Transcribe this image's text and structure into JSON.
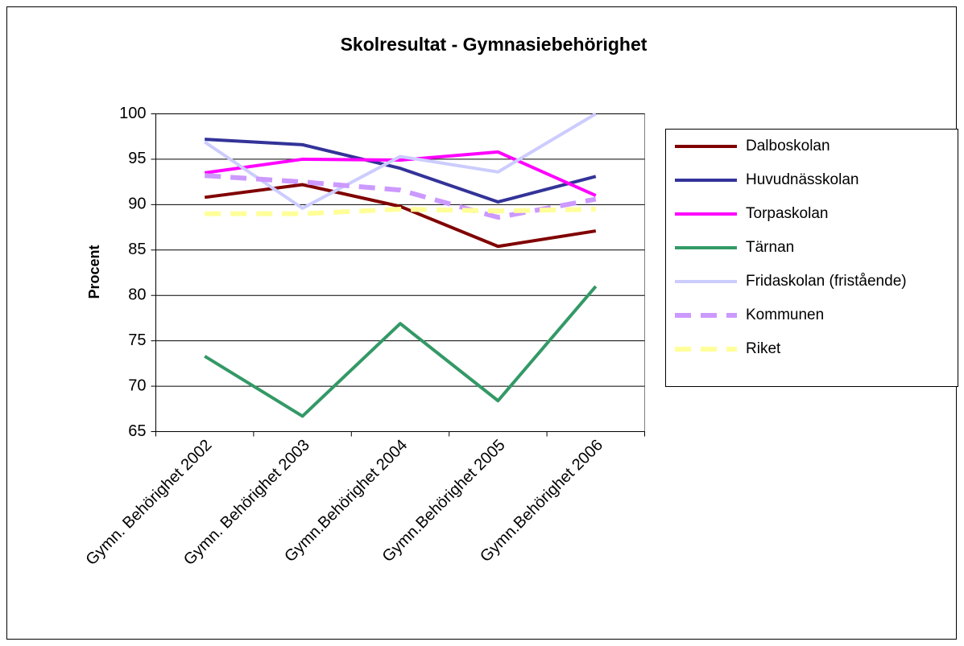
{
  "chart_data": {
    "type": "line",
    "title": "Skolresultat - Gymnasiebehörighet",
    "y_label": "Procent",
    "categories": [
      "Gymn. Behörighet 2002",
      "Gymn. Behörighet 2003",
      "Gymn.Behörighet 2004",
      "Gymn.Behörighet 2005",
      "Gymn.Behörighet 2006"
    ],
    "series": [
      {
        "name": "Dalboskolan",
        "color": "#800000",
        "values": [
          90.8,
          92.2,
          89.8,
          85.4,
          87.1
        ]
      },
      {
        "name": "Huvudnässkolan",
        "color": "#333399",
        "values": [
          97.2,
          96.6,
          94.0,
          90.3,
          93.1
        ]
      },
      {
        "name": "Torpaskolan",
        "color": "#ff00ff",
        "values": [
          93.5,
          95.0,
          94.9,
          95.8,
          91.0
        ]
      },
      {
        "name": "Tärnan",
        "color": "#339966",
        "values": [
          73.3,
          66.7,
          76.9,
          68.4,
          81.0
        ]
      },
      {
        "name": "Fridaskolan (fristående)",
        "color": "#ccccff",
        "values": [
          96.9,
          89.6,
          95.3,
          93.6,
          100
        ]
      },
      {
        "name": "Kommunen",
        "color": "#cc99ff",
        "dashed": true,
        "values": [
          93.2,
          92.5,
          91.6,
          88.6,
          90.6
        ]
      },
      {
        "name": "Riket",
        "color": "#ffff99",
        "dashed": true,
        "values": [
          89.0,
          89.0,
          89.5,
          89.3,
          89.5
        ]
      }
    ],
    "ylim": [
      65,
      100
    ],
    "yticks": [
      65,
      70,
      75,
      80,
      85,
      90,
      95,
      100
    ],
    "grid": true,
    "legend": "right"
  }
}
